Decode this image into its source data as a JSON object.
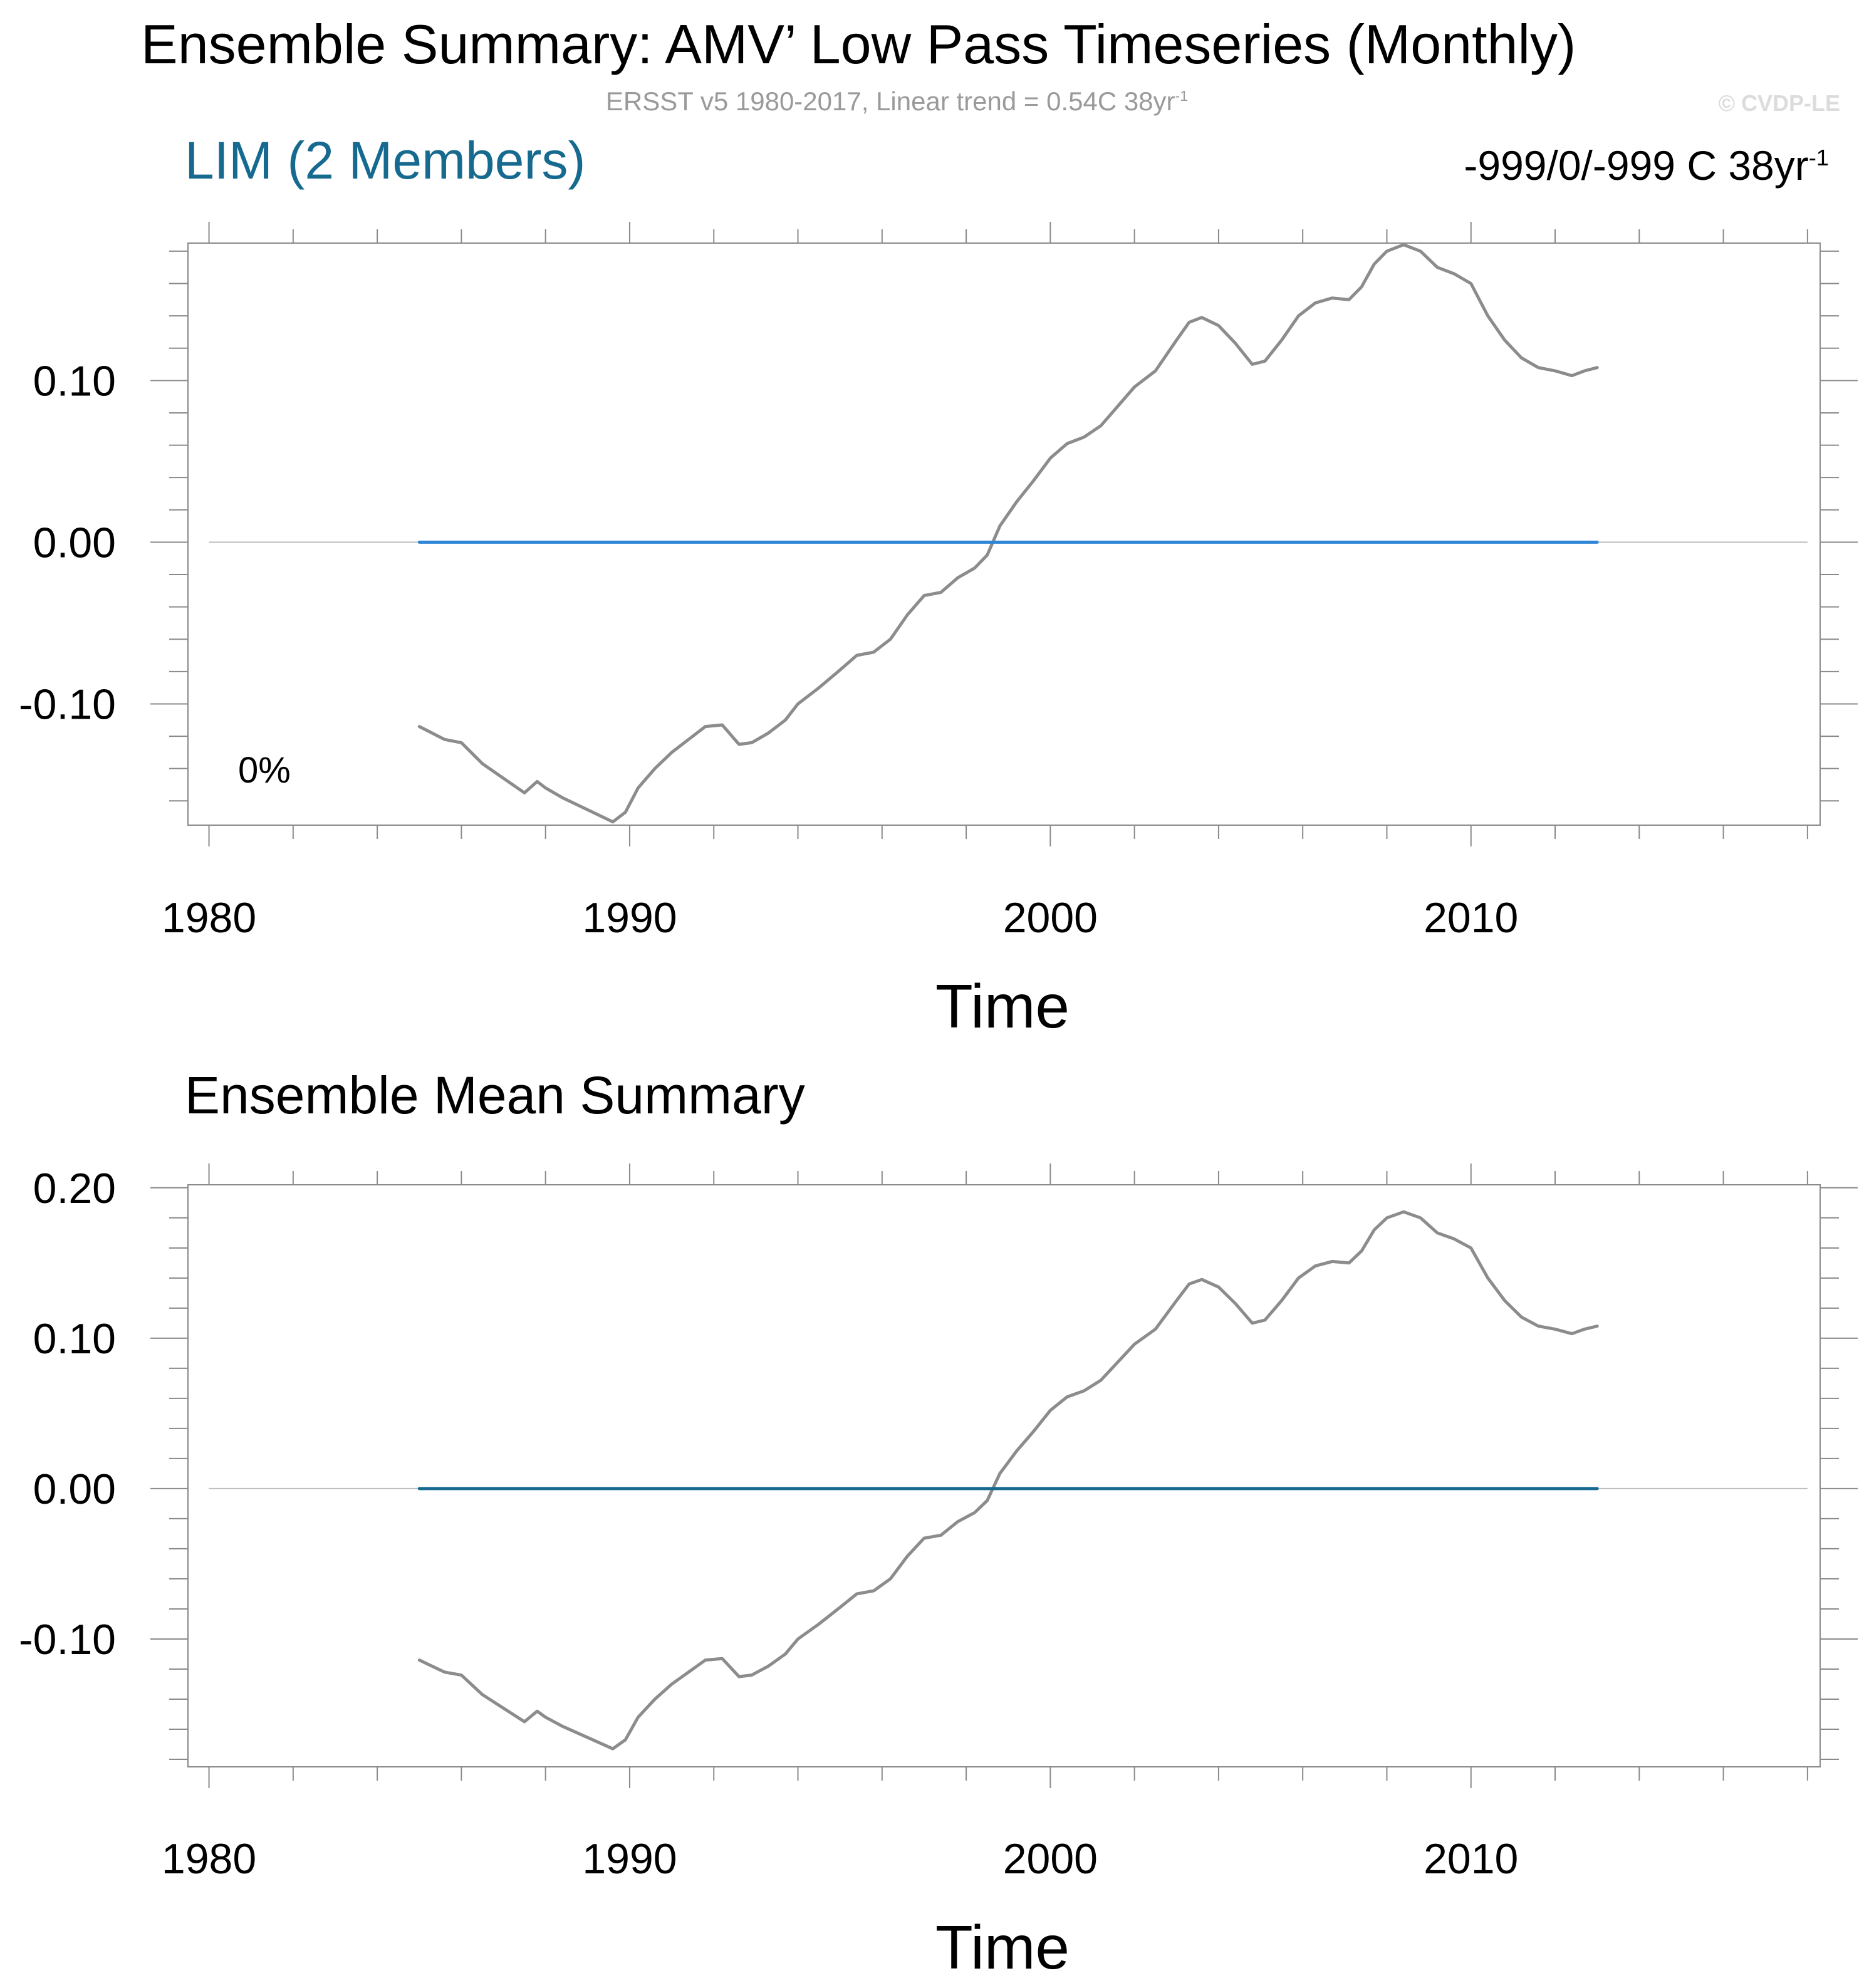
{
  "title": "Ensemble Summary: AMV’ Low Pass Timeseries (Monthly)",
  "subtitle": {
    "text": "ERSST v5 1980-2017, Linear trend = 0.54C 38yr",
    "superscript": "-1"
  },
  "watermark": "© CVDP-LE",
  "colors": {
    "observation_line": "#8c8c8c",
    "ensemble_member_line": "#2f86d6",
    "ensemble_mean_line": "#16698f",
    "panel1_label": "#16698f"
  },
  "chart_data": [
    {
      "type": "line",
      "panel_label": "LIM (2 Members)",
      "stats": {
        "text": "-999/0/-999 C 38yr",
        "superscript": "-1"
      },
      "annotation": "0%",
      "xlabel": "Time",
      "ylabel": "",
      "xlim": [
        1979.5,
        2018.3
      ],
      "ylim": [
        -0.175,
        0.185
      ],
      "x_ticks": [
        1980,
        1990,
        2000,
        2010
      ],
      "y_ticks": [
        -0.1,
        0.0,
        0.1
      ],
      "y_tick_labels": [
        "-0.10",
        "0.00",
        "0.10"
      ],
      "zero_line": true,
      "series": [
        {
          "name": "ERSST v5",
          "color": "#8c8c8c",
          "x": [
            1985.0,
            1985.3,
            1985.6,
            1986.0,
            1986.5,
            1987.0,
            1987.5,
            1987.8,
            1988.0,
            1988.4,
            1988.8,
            1989.2,
            1989.6,
            1989.9,
            1990.2,
            1990.6,
            1991.0,
            1991.4,
            1991.8,
            1992.2,
            1992.6,
            1992.9,
            1993.3,
            1993.7,
            1994.0,
            1994.5,
            1995.0,
            1995.4,
            1995.8,
            1996.2,
            1996.6,
            1997.0,
            1997.4,
            1997.8,
            1998.2,
            1998.5,
            1998.8,
            1999.2,
            1999.6,
            2000.0,
            2000.4,
            2000.8,
            2001.2,
            2001.6,
            2002.0,
            2002.5,
            2003.0,
            2003.3,
            2003.6,
            2004.0,
            2004.4,
            2004.8,
            2005.1,
            2005.5,
            2005.9,
            2006.3,
            2006.7,
            2007.1,
            2007.4,
            2007.7,
            2008.0,
            2008.4,
            2008.8,
            2009.2,
            2009.6,
            2010.0,
            2010.4,
            2010.8,
            2011.2,
            2011.6,
            2012.0,
            2012.4,
            2012.7,
            2013.0
          ],
          "values": [
            -0.114,
            -0.118,
            -0.122,
            -0.124,
            -0.137,
            -0.146,
            -0.155,
            -0.148,
            -0.152,
            -0.158,
            -0.163,
            -0.168,
            -0.173,
            -0.167,
            -0.152,
            -0.14,
            -0.13,
            -0.122,
            -0.114,
            -0.113,
            -0.125,
            -0.124,
            -0.118,
            -0.11,
            -0.1,
            -0.09,
            -0.079,
            -0.07,
            -0.068,
            -0.06,
            -0.045,
            -0.033,
            -0.031,
            -0.022,
            -0.016,
            -0.008,
            0.01,
            0.025,
            0.038,
            0.052,
            0.061,
            0.065,
            0.072,
            0.084,
            0.096,
            0.106,
            0.125,
            0.136,
            0.139,
            0.134,
            0.123,
            0.11,
            0.112,
            0.125,
            0.14,
            0.148,
            0.151,
            0.15,
            0.158,
            0.172,
            0.18,
            0.184,
            0.18,
            0.17,
            0.166,
            0.16,
            0.14,
            0.125,
            0.114,
            0.108,
            0.106,
            0.103,
            0.106,
            0.108
          ]
        },
        {
          "name": "LIM members",
          "color": "#2f86d6",
          "x": [
            1985.0,
            2013.0
          ],
          "values": [
            0.0,
            0.0
          ]
        }
      ]
    },
    {
      "type": "line",
      "panel_label": "Ensemble Mean Summary",
      "xlabel": "Time",
      "ylabel": "",
      "xlim": [
        1979.5,
        2018.3
      ],
      "ylim": [
        -0.185,
        0.202
      ],
      "x_ticks": [
        1980,
        1990,
        2000,
        2010
      ],
      "y_ticks": [
        -0.1,
        0.0,
        0.1,
        0.2
      ],
      "y_tick_labels": [
        "-0.10",
        "0.00",
        "0.10",
        "0.20"
      ],
      "zero_line": true,
      "series": [
        {
          "name": "ERSST v5",
          "color": "#8c8c8c",
          "x": [
            1985.0,
            1985.3,
            1985.6,
            1986.0,
            1986.5,
            1987.0,
            1987.5,
            1987.8,
            1988.0,
            1988.4,
            1988.8,
            1989.2,
            1989.6,
            1989.9,
            1990.2,
            1990.6,
            1991.0,
            1991.4,
            1991.8,
            1992.2,
            1992.6,
            1992.9,
            1993.3,
            1993.7,
            1994.0,
            1994.5,
            1995.0,
            1995.4,
            1995.8,
            1996.2,
            1996.6,
            1997.0,
            1997.4,
            1997.8,
            1998.2,
            1998.5,
            1998.8,
            1999.2,
            1999.6,
            2000.0,
            2000.4,
            2000.8,
            2001.2,
            2001.6,
            2002.0,
            2002.5,
            2003.0,
            2003.3,
            2003.6,
            2004.0,
            2004.4,
            2004.8,
            2005.1,
            2005.5,
            2005.9,
            2006.3,
            2006.7,
            2007.1,
            2007.4,
            2007.7,
            2008.0,
            2008.4,
            2008.8,
            2009.2,
            2009.6,
            2010.0,
            2010.4,
            2010.8,
            2011.2,
            2011.6,
            2012.0,
            2012.4,
            2012.7,
            2013.0
          ],
          "values": [
            -0.114,
            -0.118,
            -0.122,
            -0.124,
            -0.137,
            -0.146,
            -0.155,
            -0.148,
            -0.152,
            -0.158,
            -0.163,
            -0.168,
            -0.173,
            -0.167,
            -0.152,
            -0.14,
            -0.13,
            -0.122,
            -0.114,
            -0.113,
            -0.125,
            -0.124,
            -0.118,
            -0.11,
            -0.1,
            -0.09,
            -0.079,
            -0.07,
            -0.068,
            -0.06,
            -0.045,
            -0.033,
            -0.031,
            -0.022,
            -0.016,
            -0.008,
            0.01,
            0.025,
            0.038,
            0.052,
            0.061,
            0.065,
            0.072,
            0.084,
            0.096,
            0.106,
            0.125,
            0.136,
            0.139,
            0.134,
            0.123,
            0.11,
            0.112,
            0.125,
            0.14,
            0.148,
            0.151,
            0.15,
            0.158,
            0.172,
            0.18,
            0.184,
            0.18,
            0.17,
            0.166,
            0.16,
            0.14,
            0.125,
            0.114,
            0.108,
            0.106,
            0.103,
            0.106,
            0.108
          ]
        },
        {
          "name": "Ensemble mean",
          "color": "#16698f",
          "x": [
            1985.0,
            2013.0
          ],
          "values": [
            0.0,
            0.0
          ]
        }
      ]
    }
  ]
}
